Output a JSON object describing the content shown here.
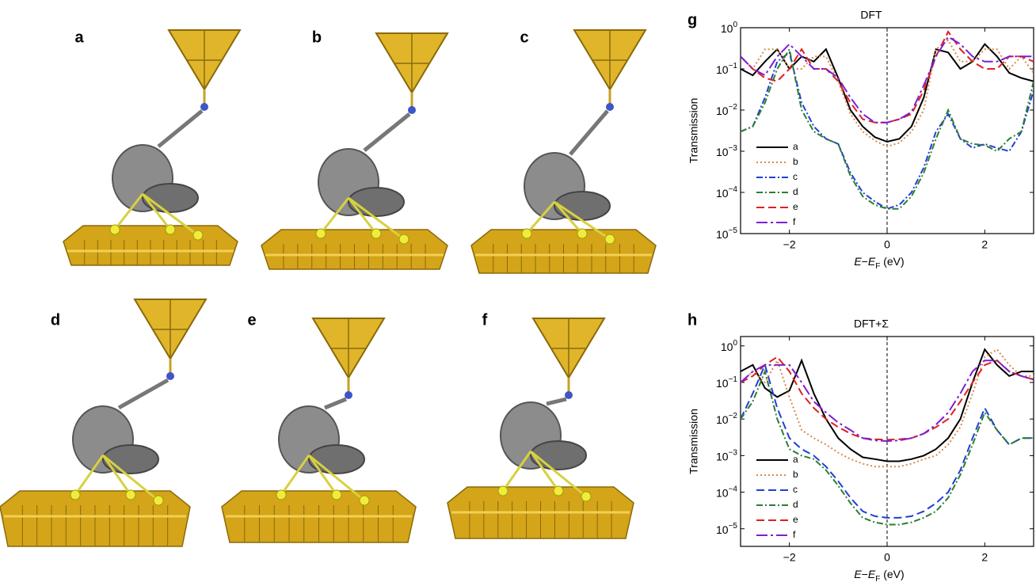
{
  "panels": [
    {
      "label": "a"
    },
    {
      "label": "b"
    },
    {
      "label": "c"
    },
    {
      "label": "d"
    },
    {
      "label": "e"
    },
    {
      "label": "f"
    }
  ],
  "chart_data": [
    {
      "type": "line",
      "panel_label": "g",
      "title": "DFT",
      "y_label": "Transmission",
      "x_label": "E−E_F (eV)",
      "log_y": true,
      "xlim": [
        -3,
        3
      ],
      "ylim": [
        1e-05,
        1
      ],
      "xticks": [
        -2,
        0,
        2
      ],
      "yticks": [
        {
          "value": 1e-05,
          "label": "10^−5"
        },
        {
          "value": 0.0001,
          "label": "10^−4"
        },
        {
          "value": 0.001,
          "label": "10^−3"
        },
        {
          "value": 0.01,
          "label": "10^−2"
        },
        {
          "value": 0.1,
          "label": "10^−1"
        },
        {
          "value": 1,
          "label": "10^0"
        }
      ],
      "vline_x": 0,
      "legend": "lower-left",
      "x": [
        -3,
        -2.75,
        -2.5,
        -2.25,
        -2,
        -1.75,
        -1.5,
        -1.25,
        -1,
        -0.75,
        -0.5,
        -0.25,
        0,
        0.25,
        0.5,
        0.75,
        1,
        1.25,
        1.5,
        1.75,
        2,
        2.25,
        2.5,
        2.75,
        3
      ],
      "series": [
        {
          "name": "a",
          "color": "#000000",
          "line_style": "solid",
          "values": [
            0.1,
            0.07,
            0.15,
            0.3,
            0.1,
            0.2,
            0.15,
            0.3,
            0.06,
            0.01,
            0.004,
            0.0022,
            0.0017,
            0.002,
            0.004,
            0.02,
            0.3,
            0.25,
            0.1,
            0.15,
            0.4,
            0.2,
            0.08,
            0.06,
            0.05
          ]
        },
        {
          "name": "b",
          "color": "#d9894a",
          "line_style": "dotted",
          "values": [
            0.2,
            0.1,
            0.3,
            0.3,
            0.1,
            0.1,
            0.2,
            0.2,
            0.05,
            0.008,
            0.003,
            0.0018,
            0.0013,
            0.0016,
            0.003,
            0.01,
            0.3,
            0.5,
            0.15,
            0.15,
            0.3,
            0.3,
            0.1,
            0.2,
            0.08
          ]
        },
        {
          "name": "c",
          "color": "#1f3fd6",
          "line_style": "dashdot",
          "values": [
            0.003,
            0.004,
            0.02,
            0.15,
            0.25,
            0.015,
            0.004,
            0.002,
            0.0015,
            0.0003,
            0.0001,
            6e-05,
            4e-05,
            5e-05,
            0.0001,
            0.0004,
            0.003,
            0.008,
            0.002,
            0.0012,
            0.0015,
            0.0012,
            0.001,
            0.003,
            0.03
          ]
        },
        {
          "name": "d",
          "color": "#2e7d32",
          "line_style": "dashdot",
          "values": [
            0.003,
            0.004,
            0.015,
            0.1,
            0.3,
            0.01,
            0.003,
            0.002,
            0.0015,
            0.00025,
            8e-05,
            5e-05,
            4e-05,
            4e-05,
            8e-05,
            0.0003,
            0.002,
            0.01,
            0.002,
            0.0015,
            0.0014,
            0.001,
            0.002,
            0.003,
            0.05
          ]
        },
        {
          "name": "e",
          "color": "#e02020",
          "line_style": "dashed",
          "values": [
            0.2,
            0.1,
            0.06,
            0.05,
            0.1,
            0.3,
            0.1,
            0.1,
            0.05,
            0.015,
            0.006,
            0.005,
            0.005,
            0.006,
            0.008,
            0.03,
            0.2,
            0.8,
            0.3,
            0.15,
            0.1,
            0.1,
            0.2,
            0.2,
            0.15
          ]
        },
        {
          "name": "f",
          "color": "#7b1fd6",
          "line_style": "longdashdot",
          "values": [
            0.2,
            0.1,
            0.07,
            0.2,
            0.4,
            0.2,
            0.1,
            0.1,
            0.06,
            0.02,
            0.008,
            0.005,
            0.005,
            0.006,
            0.009,
            0.04,
            0.2,
            0.6,
            0.4,
            0.2,
            0.15,
            0.15,
            0.2,
            0.2,
            0.2
          ]
        }
      ]
    },
    {
      "type": "line",
      "panel_label": "h",
      "title": "DFT+Σ",
      "y_label": "Transmission",
      "x_label": "E−E_F (eV)",
      "log_y": true,
      "xlim": [
        -3,
        3
      ],
      "ylim": [
        3.3e-06,
        1.8
      ],
      "xticks": [
        -2,
        0,
        2
      ],
      "yticks": [
        {
          "value": 1e-05,
          "label": "10^−5"
        },
        {
          "value": 0.0001,
          "label": "10^−4"
        },
        {
          "value": 0.001,
          "label": "10^−3"
        },
        {
          "value": 0.01,
          "label": "10^−2"
        },
        {
          "value": 0.1,
          "label": "10^−1"
        },
        {
          "value": 1,
          "label": "10^0"
        }
      ],
      "vline_x": 0,
      "legend": "lower-left",
      "x": [
        -3,
        -2.75,
        -2.5,
        -2.25,
        -2,
        -1.75,
        -1.5,
        -1.25,
        -1,
        -0.75,
        -0.5,
        -0.25,
        0,
        0.25,
        0.5,
        0.75,
        1,
        1.25,
        1.5,
        1.75,
        2,
        2.25,
        2.5,
        2.75,
        3
      ],
      "series": [
        {
          "name": "a",
          "color": "#000000",
          "line_style": "solid",
          "values": [
            0.2,
            0.3,
            0.07,
            0.04,
            0.06,
            0.4,
            0.05,
            0.01,
            0.003,
            0.0015,
            0.0009,
            0.0008,
            0.0007,
            0.0007,
            0.0008,
            0.001,
            0.0015,
            0.003,
            0.01,
            0.1,
            0.8,
            0.3,
            0.15,
            0.2,
            0.2
          ]
        },
        {
          "name": "b",
          "color": "#d9894a",
          "line_style": "dotted",
          "values": [
            0.1,
            0.2,
            0.1,
            0.4,
            0.04,
            0.005,
            0.003,
            0.002,
            0.0012,
            0.0008,
            0.0006,
            0.0005,
            0.0005,
            0.0005,
            0.0006,
            0.0008,
            0.001,
            0.002,
            0.006,
            0.05,
            0.5,
            0.8,
            0.3,
            0.15,
            0.15
          ]
        },
        {
          "name": "c",
          "color": "#1f3fd6",
          "line_style": "dashed",
          "values": [
            0.01,
            0.05,
            0.3,
            0.02,
            0.003,
            0.0015,
            0.001,
            0.0005,
            0.0002,
            7e-05,
            3e-05,
            2.2e-05,
            2e-05,
            2e-05,
            2.2e-05,
            3e-05,
            5e-05,
            0.0001,
            0.0004,
            0.003,
            0.02,
            0.005,
            0.002,
            0.003,
            0.003
          ]
        },
        {
          "name": "d",
          "color": "#2e7d32",
          "line_style": "dashdot",
          "values": [
            0.01,
            0.03,
            0.2,
            0.01,
            0.0015,
            0.001,
            0.0008,
            0.0004,
            0.00015,
            5e-05,
            2e-05,
            1.5e-05,
            1.3e-05,
            1.3e-05,
            1.5e-05,
            2e-05,
            3e-05,
            7e-05,
            0.0003,
            0.002,
            0.015,
            0.005,
            0.002,
            0.003,
            0.003
          ]
        },
        {
          "name": "e",
          "color": "#e02020",
          "line_style": "dashed",
          "values": [
            0.1,
            0.15,
            0.3,
            0.5,
            0.2,
            0.05,
            0.02,
            0.01,
            0.006,
            0.004,
            0.003,
            0.0028,
            0.0027,
            0.0028,
            0.003,
            0.004,
            0.006,
            0.01,
            0.03,
            0.1,
            0.3,
            0.4,
            0.2,
            0.15,
            0.12
          ]
        },
        {
          "name": "f",
          "color": "#7b1fd6",
          "line_style": "longdashdot",
          "values": [
            0.1,
            0.2,
            0.3,
            0.3,
            0.3,
            0.1,
            0.03,
            0.015,
            0.008,
            0.005,
            0.003,
            0.0026,
            0.0025,
            0.0026,
            0.003,
            0.004,
            0.007,
            0.015,
            0.05,
            0.2,
            0.4,
            0.4,
            0.2,
            0.15,
            0.12
          ]
        }
      ]
    }
  ]
}
